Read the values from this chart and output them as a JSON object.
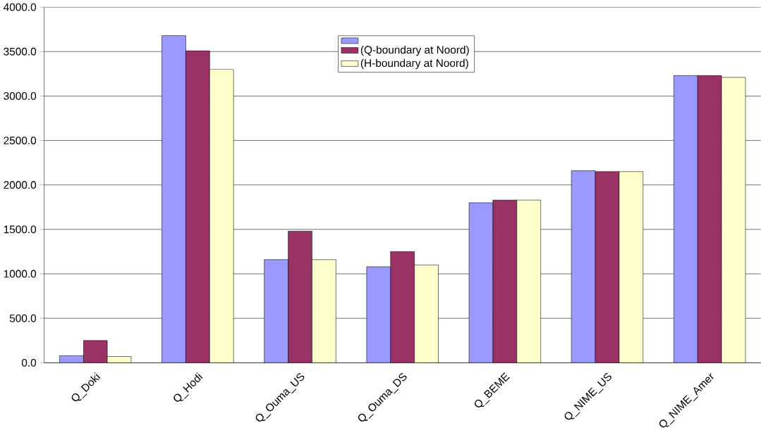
{
  "chart_data": {
    "type": "bar",
    "categories": [
      "Q_Doki",
      "Q_Hodi",
      "Q_Ouma_US",
      "Q_Ouma_DS",
      "Q_BEME",
      "Q_NIME_US",
      "Q_NIME_Amer"
    ],
    "series": [
      {
        "color": "#9999ff",
        "values": [
          80,
          3680,
          1160,
          1080,
          1800,
          2160,
          3230
        ]
      },
      {
        "name": "(Q-boundary at Noord)",
        "color": "#993366",
        "values": [
          250,
          3510,
          1480,
          1250,
          1830,
          2150,
          3230
        ]
      },
      {
        "name": "(H-boundary at Noord)",
        "color": "#ffffcc",
        "values": [
          70,
          3300,
          1160,
          1100,
          1830,
          2150,
          3210
        ]
      }
    ],
    "ylim": [
      0,
      4000
    ],
    "yticks": [
      {
        "value": 0,
        "label": "0.0"
      },
      {
        "value": 500,
        "label": "500.0"
      },
      {
        "value": 1000,
        "label": "1000.0"
      },
      {
        "value": 1500,
        "label": "1500.0"
      },
      {
        "value": 2000,
        "label": "2000.0"
      },
      {
        "value": 2500,
        "label": "2500.0"
      },
      {
        "value": 3000,
        "label": "3000.0"
      },
      {
        "value": 3500,
        "label": "3500.0"
      },
      {
        "value": 4000,
        "label": "4000.0"
      }
    ],
    "grid": "y",
    "legend": "top"
  }
}
